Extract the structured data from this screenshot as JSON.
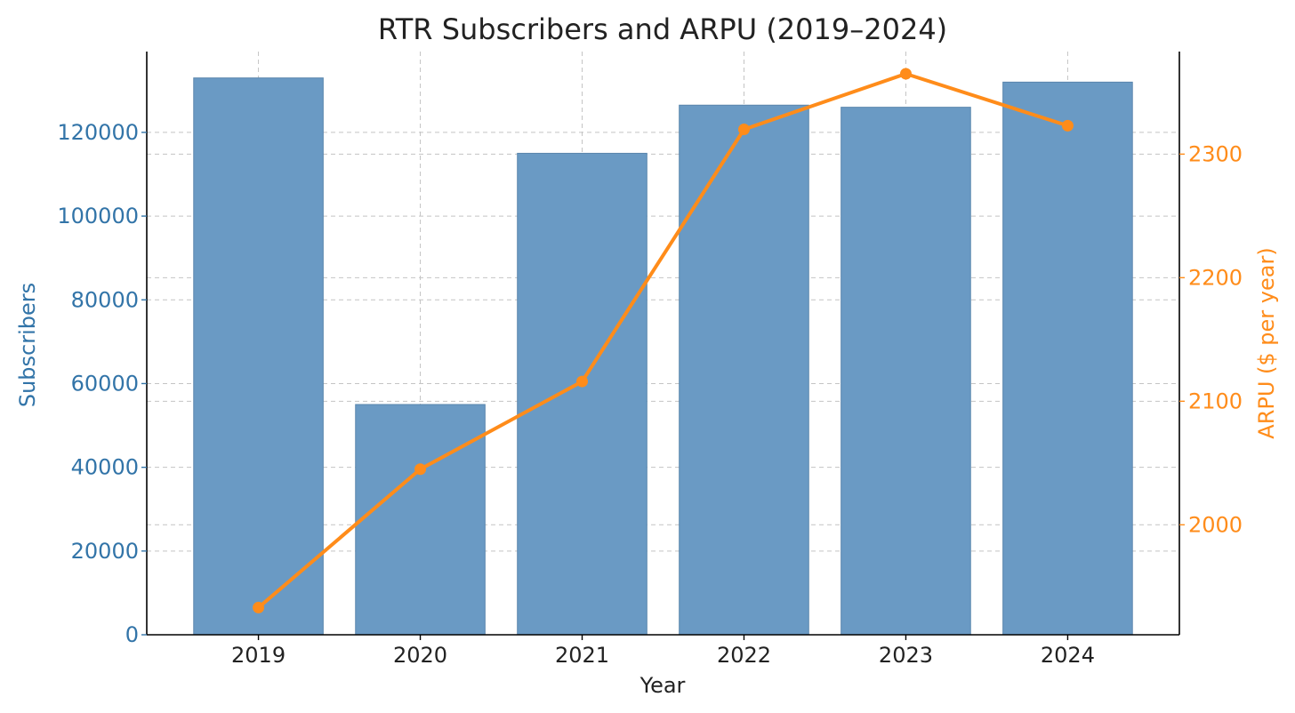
{
  "chart_data": {
    "type": "bar",
    "title": "RTR Subscribers and ARPU (2019–2024)",
    "xlabel": "Year",
    "categories": [
      "2019",
      "2020",
      "2021",
      "2022",
      "2023",
      "2024"
    ],
    "series": [
      {
        "name": "Subscribers",
        "type": "bar",
        "axis": "left",
        "values": [
          133000,
          55000,
          115000,
          126500,
          126000,
          132000
        ],
        "color": "#6a9ac4"
      },
      {
        "name": "ARPU ($ per year)",
        "type": "line",
        "axis": "right",
        "values": [
          1933,
          2045,
          2116,
          2320,
          2365,
          2323
        ],
        "color": "#ff8c1a"
      }
    ],
    "y_left": {
      "label": "Subscribers",
      "range": [
        0,
        139300
      ],
      "ticks": [
        "0",
        "20000",
        "40000",
        "60000",
        "80000",
        "100000",
        "120000"
      ],
      "color": "#3274a8"
    },
    "y_right": {
      "label": "ARPU ($ per year)",
      "range": [
        1911,
        2383
      ],
      "ticks": [
        "2000",
        "2100",
        "2200",
        "2300"
      ],
      "color": "#ff8c1a"
    },
    "grid": true,
    "legend": "none"
  }
}
